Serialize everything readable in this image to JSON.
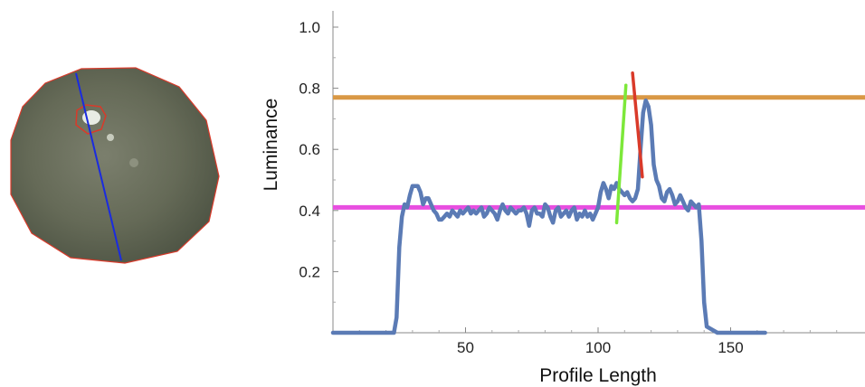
{
  "colors": {
    "profile": "#5b7bb5",
    "upper_threshold": "#d99845",
    "lower_threshold": "#e84ee0",
    "rising_edge_fit": "#7de83a",
    "falling_edge_fit": "#d93a2a",
    "sample_outline": "#d93a2a",
    "scan_line": "#1a2be0",
    "sample_fill": "#6d7260"
  },
  "image_panel": {
    "description_icon": "coin-sample-image"
  },
  "chart_data": {
    "type": "line",
    "xlabel": "Profile Length",
    "ylabel": "Luminance",
    "xlim": [
      0,
      200
    ],
    "ylim": [
      0,
      1.05
    ],
    "x_ticks": [
      50,
      100,
      150
    ],
    "y_ticks": [
      0.2,
      0.4,
      0.6,
      0.8,
      1.0
    ],
    "x_tick_labels": [
      "50",
      "100",
      "150"
    ],
    "y_tick_labels": [
      "0.2",
      "0.4",
      "0.6",
      "0.8",
      "1.0"
    ],
    "grid": false,
    "series": [
      {
        "x": [
          0,
          5,
          10,
          15,
          20,
          22,
          23,
          24,
          25,
          26,
          27,
          28,
          29,
          30,
          31,
          32,
          33,
          34,
          35,
          36,
          37,
          38,
          39,
          40,
          41,
          42,
          43,
          44,
          45,
          46,
          47,
          48,
          49,
          50,
          51,
          52,
          53,
          54,
          55,
          56,
          57,
          58,
          59,
          60,
          61,
          62,
          63,
          64,
          65,
          66,
          67,
          68,
          69,
          70,
          71,
          72,
          73,
          74,
          75,
          76,
          77,
          78,
          79,
          80,
          81,
          82,
          83,
          84,
          85,
          86,
          87,
          88,
          89,
          90,
          91,
          92,
          93,
          94,
          95,
          96,
          97,
          98,
          99,
          100,
          101,
          102,
          103,
          104,
          105,
          106,
          107,
          108,
          109,
          110,
          111,
          112,
          113,
          114,
          115,
          116,
          117,
          118,
          119,
          120,
          121,
          122,
          123,
          124,
          125,
          126,
          127,
          128,
          129,
          130,
          131,
          132,
          133,
          134,
          135,
          136,
          137,
          138,
          139,
          140,
          141,
          145,
          150,
          155,
          160,
          163
        ],
        "y": [
          0.0,
          0.0,
          0.0,
          0.0,
          0.0,
          0.0,
          0.0,
          0.05,
          0.28,
          0.38,
          0.42,
          0.41,
          0.45,
          0.48,
          0.48,
          0.48,
          0.46,
          0.42,
          0.44,
          0.44,
          0.42,
          0.4,
          0.39,
          0.37,
          0.37,
          0.38,
          0.39,
          0.38,
          0.4,
          0.39,
          0.38,
          0.4,
          0.39,
          0.4,
          0.41,
          0.39,
          0.4,
          0.39,
          0.4,
          0.41,
          0.38,
          0.39,
          0.41,
          0.4,
          0.39,
          0.37,
          0.4,
          0.42,
          0.4,
          0.39,
          0.41,
          0.4,
          0.39,
          0.4,
          0.4,
          0.41,
          0.39,
          0.35,
          0.4,
          0.41,
          0.39,
          0.39,
          0.38,
          0.42,
          0.41,
          0.38,
          0.36,
          0.4,
          0.41,
          0.38,
          0.39,
          0.4,
          0.38,
          0.4,
          0.41,
          0.37,
          0.39,
          0.38,
          0.4,
          0.38,
          0.39,
          0.37,
          0.39,
          0.41,
          0.46,
          0.49,
          0.47,
          0.44,
          0.48,
          0.47,
          0.49,
          0.47,
          0.46,
          0.45,
          0.46,
          0.44,
          0.43,
          0.44,
          0.47,
          0.6,
          0.72,
          0.76,
          0.74,
          0.68,
          0.55,
          0.5,
          0.48,
          0.44,
          0.43,
          0.46,
          0.47,
          0.45,
          0.42,
          0.43,
          0.45,
          0.43,
          0.41,
          0.4,
          0.43,
          0.42,
          0.41,
          0.42,
          0.3,
          0.1,
          0.02,
          0.0,
          0.0,
          0.0,
          0.0,
          0.0
        ]
      }
    ],
    "hlines": [
      {
        "y": 0.77
      },
      {
        "y": 0.41
      }
    ],
    "fit_segments": [
      {
        "x": [
          107.0,
          110.5
        ],
        "y": [
          0.36,
          0.81
        ]
      },
      {
        "x": [
          113.0,
          116.7
        ],
        "y": [
          0.85,
          0.51
        ]
      }
    ]
  }
}
